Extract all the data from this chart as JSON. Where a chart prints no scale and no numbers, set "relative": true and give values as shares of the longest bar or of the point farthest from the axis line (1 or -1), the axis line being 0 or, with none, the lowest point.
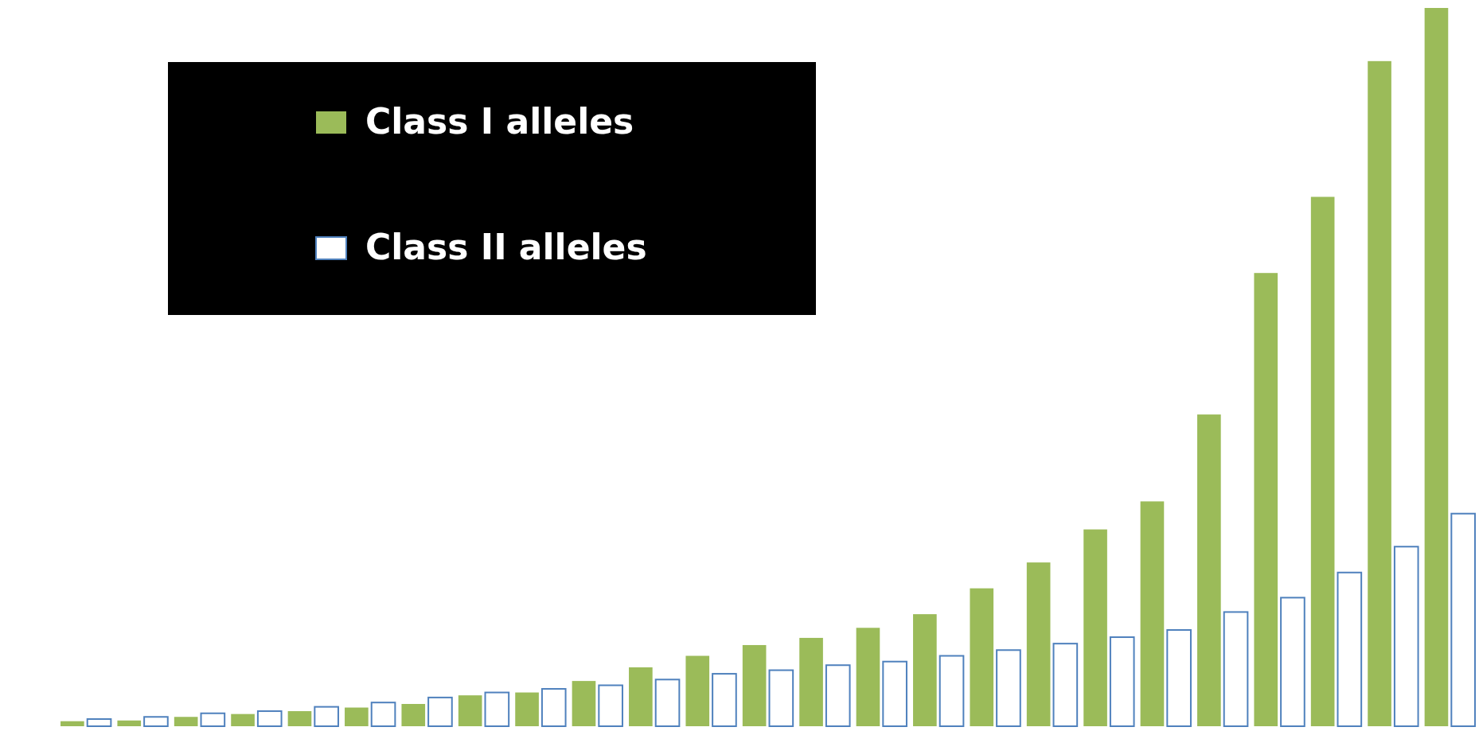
{
  "chart_data": {
    "type": "bar",
    "relative": true,
    "legend": "top left",
    "categories": [
      null,
      null,
      null,
      null,
      null,
      null,
      null,
      null,
      null,
      null,
      null,
      null,
      null,
      null,
      null,
      null,
      null,
      null,
      null,
      null,
      null,
      null,
      null,
      null,
      null
    ],
    "series": [
      {
        "name": "Class I alleles",
        "color": "#9bbb59",
        "values": [
          0.007,
          0.008,
          0.013,
          0.017,
          0.021,
          0.026,
          0.031,
          0.043,
          0.047,
          0.063,
          0.082,
          0.098,
          0.113,
          0.123,
          0.137,
          0.156,
          0.192,
          0.228,
          0.274,
          0.313,
          0.434,
          0.631,
          0.737,
          0.926,
          1
        ]
      },
      {
        "name": "Class II alleles",
        "color": "#ffffff",
        "values": [
          0.01,
          0.013,
          0.018,
          0.021,
          0.027,
          0.033,
          0.04,
          0.047,
          0.052,
          0.057,
          0.065,
          0.073,
          0.078,
          0.085,
          0.09,
          0.098,
          0.106,
          0.115,
          0.124,
          0.134,
          0.159,
          0.179,
          0.214,
          0.25,
          0.296
        ]
      }
    ]
  }
}
